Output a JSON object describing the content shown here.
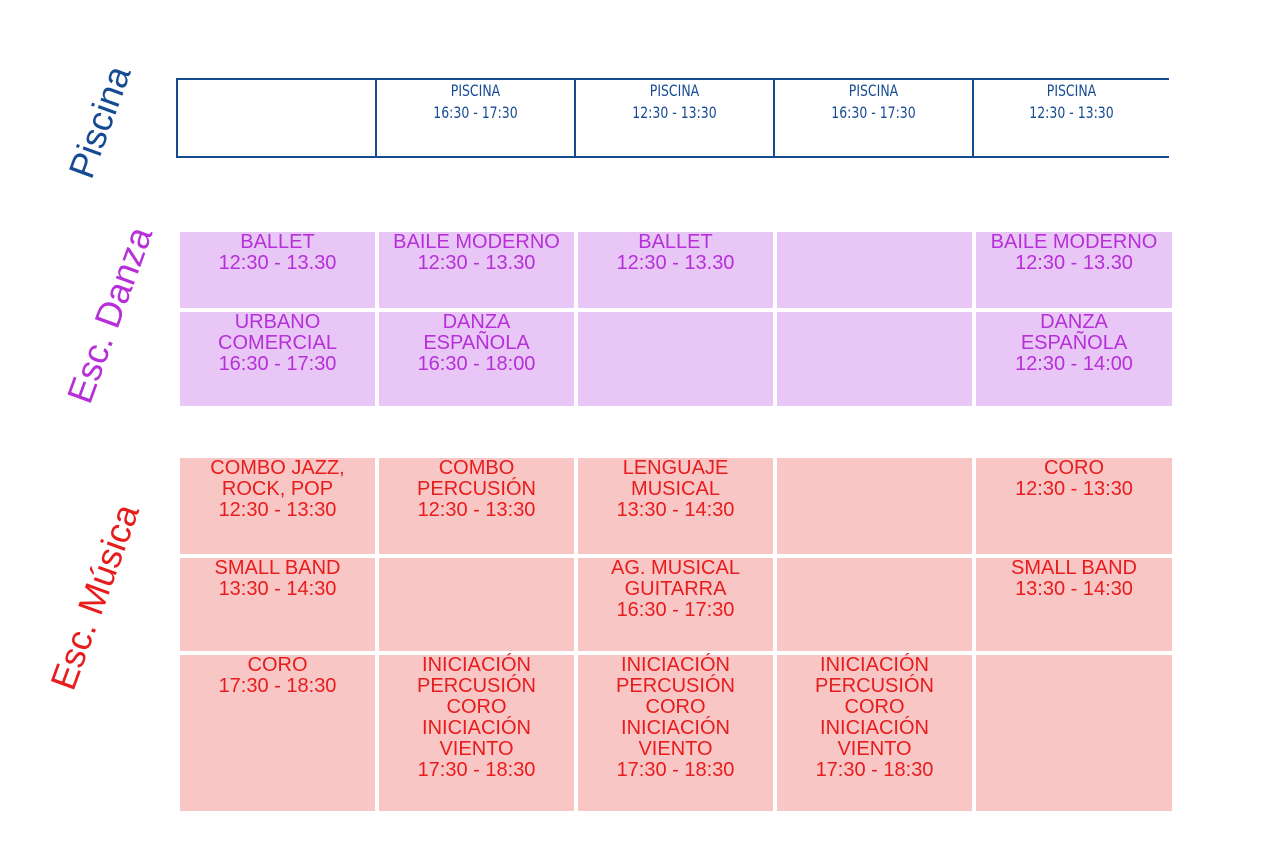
{
  "sections": {
    "piscina": {
      "label": "Piscina",
      "color": "#164a93"
    },
    "danza": {
      "label": "Esc. Danza",
      "color": "#b62fd8",
      "background": "#e8c7f7"
    },
    "musica": {
      "label": "Esc. Música",
      "color": "#e71c1c",
      "background": "#f9c6c6"
    }
  },
  "piscina_row": [
    "",
    "PISCINA\n16:30  -  17:30",
    "PISCINA\n12:30  -  13:30",
    "PISCINA\n16:30  -  17:30",
    "PISCINA\n12:30  -  13:30"
  ],
  "danza_rows": [
    [
      "BALLET\n12:30 - 13.30",
      "BAILE MODERNO\n12:30 - 13.30",
      "BALLET\n12:30 - 13.30",
      "",
      "BAILE MODERNO\n12:30 - 13.30"
    ],
    [
      "URBANO\nCOMERCIAL\n16:30 - 17:30",
      "DANZA\nESPAÑOLA\n16:30 - 18:00",
      "",
      "",
      "DANZA\nESPAÑOLA\n12:30 - 14:00"
    ]
  ],
  "musica_rows": [
    [
      "COMBO JAZZ,\nROCK, POP\n12:30 - 13:30",
      "COMBO\nPERCUSIÓN\n12:30 - 13:30",
      "LENGUAJE\nMUSICAL\n13:30 - 14:30",
      "",
      "CORO\n12:30 - 13:30"
    ],
    [
      "SMALL BAND\n13:30 - 14:30",
      "",
      "AG. MUSICAL\nGUITARRA\n16:30 - 17:30",
      "",
      "SMALL BAND\n13:30 - 14:30"
    ],
    [
      "CORO\n17:30 - 18:30",
      "INICIACIÓN\nPERCUSIÓN\nCORO\nINICIACIÓN\nVIENTO\n17:30 - 18:30",
      "INICIACIÓN\nPERCUSIÓN\nCORO\nINICIACIÓN\nVIENTO\n17:30 - 18:30",
      "INICIACIÓN\nPERCUSIÓN\nCORO\nINICIACIÓN\nVIENTO\n17:30 - 18:30",
      ""
    ]
  ]
}
